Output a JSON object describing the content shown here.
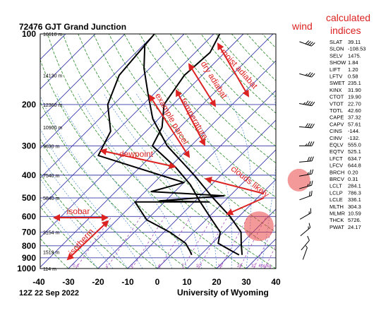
{
  "chart_data": {
    "type": "line",
    "title": "72476 GJT Grand Junction",
    "footer_left": "12Z 22 Sep 2022",
    "footer_right": "University of Wyoming",
    "pressure_ticks": [
      100,
      200,
      300,
      400,
      500,
      600,
      700,
      800,
      900,
      1000
    ],
    "temp_ticks": [
      -40,
      -30,
      -20,
      -10,
      0,
      10,
      20,
      30,
      40
    ],
    "xlim": [
      -40,
      40
    ],
    "ylim": [
      1000,
      100
    ],
    "height_labels": [
      {
        "p": 100,
        "text": "16610 m"
      },
      {
        "p": 150,
        "text": "14130 m"
      },
      {
        "p": 200,
        "text": "12360 m"
      },
      {
        "p": 250,
        "text": "10900 m"
      },
      {
        "p": 300,
        "text": "9630 m"
      },
      {
        "p": 400,
        "text": "7540 m"
      },
      {
        "p": 500,
        "text": "5840 m"
      },
      {
        "p": 700,
        "text": "3154 m"
      },
      {
        "p": 850,
        "text": "1519 m"
      },
      {
        "p": 1000,
        "text": "114 m"
      }
    ],
    "mixing_ratio_labels": [
      "0.4",
      "1",
      "2",
      "4",
      "7",
      "10",
      "16",
      "24",
      "32",
      "40g/kg"
    ],
    "series": [
      {
        "name": "temperature",
        "color": "#000000",
        "points": [
          [
            23,
            875
          ],
          [
            19,
            840
          ],
          [
            12,
            780
          ],
          [
            9,
            700
          ],
          [
            2,
            620
          ],
          [
            -8,
            520
          ],
          [
            -17,
            440
          ],
          [
            -28,
            370
          ],
          [
            -43,
            300
          ],
          [
            -46,
            250
          ],
          [
            -53,
            200
          ],
          [
            -56,
            150
          ],
          [
            -55,
            120
          ],
          [
            -58,
            100
          ]
        ]
      },
      {
        "name": "dewpoint",
        "color": "#000000",
        "points": [
          [
            7,
            875
          ],
          [
            5,
            840
          ],
          [
            1,
            780
          ],
          [
            -8,
            700
          ],
          [
            -20,
            620
          ],
          [
            -30,
            520
          ],
          [
            -5,
            520
          ],
          [
            -22,
            515
          ],
          [
            -2,
            490
          ],
          [
            -28,
            470
          ],
          [
            -20,
            430
          ],
          [
            -58,
            330
          ],
          [
            -62,
            260
          ],
          [
            -72,
            200
          ],
          [
            -78,
            150
          ],
          [
            -80,
            100
          ]
        ]
      },
      {
        "name": "example parcel",
        "color": "#000000",
        "points": [
          [
            24,
            875
          ],
          [
            20,
            785
          ],
          [
            16,
            700
          ],
          [
            7,
            600
          ],
          [
            -5,
            500
          ],
          [
            -19,
            400
          ],
          [
            -38,
            300
          ],
          [
            -52,
            230
          ],
          [
            -62,
            180
          ],
          [
            -72,
            140
          ],
          [
            -80,
            110
          ]
        ]
      }
    ],
    "annotations": [
      "wind",
      "calculated indices",
      "moist adiabat",
      "dry adiabat",
      "temperature",
      "example parcel",
      "dewpoint",
      "clouds likely",
      "isobar",
      "isotherm"
    ],
    "wind_barbs": [
      {
        "p": 110,
        "direction": 290,
        "speed": 40
      },
      {
        "p": 150,
        "direction": 285,
        "speed": 35
      },
      {
        "p": 200,
        "direction": 280,
        "speed": 45
      },
      {
        "p": 250,
        "direction": 275,
        "speed": 40
      },
      {
        "p": 300,
        "direction": 270,
        "speed": 35
      },
      {
        "p": 350,
        "direction": 265,
        "speed": 30
      },
      {
        "p": 400,
        "direction": 260,
        "speed": 25
      },
      {
        "p": 450,
        "direction": 255,
        "speed": 25
      },
      {
        "p": 500,
        "direction": 250,
        "speed": 20
      },
      {
        "p": 600,
        "direction": 240,
        "speed": 15
      },
      {
        "p": 700,
        "direction": 230,
        "speed": 15
      },
      {
        "p": 800,
        "direction": 220,
        "speed": 10
      },
      {
        "p": 870,
        "direction": 200,
        "speed": 5
      }
    ],
    "indices": [
      [
        "SLAT",
        "39.11"
      ],
      [
        "SLON",
        "-108.53"
      ],
      [
        "SELV",
        "1475."
      ],
      [
        "SHOW",
        "1.84"
      ],
      [
        "LIFT",
        "1.20"
      ],
      [
        "LFTV",
        "0.58"
      ],
      [
        "SWET",
        "235.1"
      ],
      [
        "KINX",
        "31.90"
      ],
      [
        "CTOT",
        "19.90"
      ],
      [
        "VTOT",
        "22.70"
      ],
      [
        "TOTL",
        "42.60"
      ],
      [
        "CAPE",
        "37.32"
      ],
      [
        "CAPV",
        "57.61"
      ],
      [
        "CINS",
        "-144."
      ],
      [
        "CINV",
        "-132."
      ],
      [
        "EQLV",
        "555.0"
      ],
      [
        "EQTV",
        "525.1"
      ],
      [
        "LFCT",
        "634.7"
      ],
      [
        "LFCV",
        "644.8"
      ],
      [
        "BRCH",
        "0.20"
      ],
      [
        "BRCV",
        "0.31"
      ],
      [
        "LCLT",
        "284.1"
      ],
      [
        "LCLP",
        "786.3"
      ],
      [
        "LCLE",
        "336.1"
      ],
      [
        "MLTH",
        "304.3"
      ],
      [
        "MLMR",
        "10.59"
      ],
      [
        "THCK",
        "5726."
      ],
      [
        "PWAT",
        "24.17"
      ]
    ]
  },
  "colors": {
    "isobar_isotherm": "#3a3aa8",
    "dry_adiabat": "#2a8a2a",
    "moist_adiabat": "#4a8ad0",
    "mixing_ratio": "#a03ab8",
    "annotation": "#dd2222",
    "highlight": "rgba(235,70,70,0.55)"
  }
}
